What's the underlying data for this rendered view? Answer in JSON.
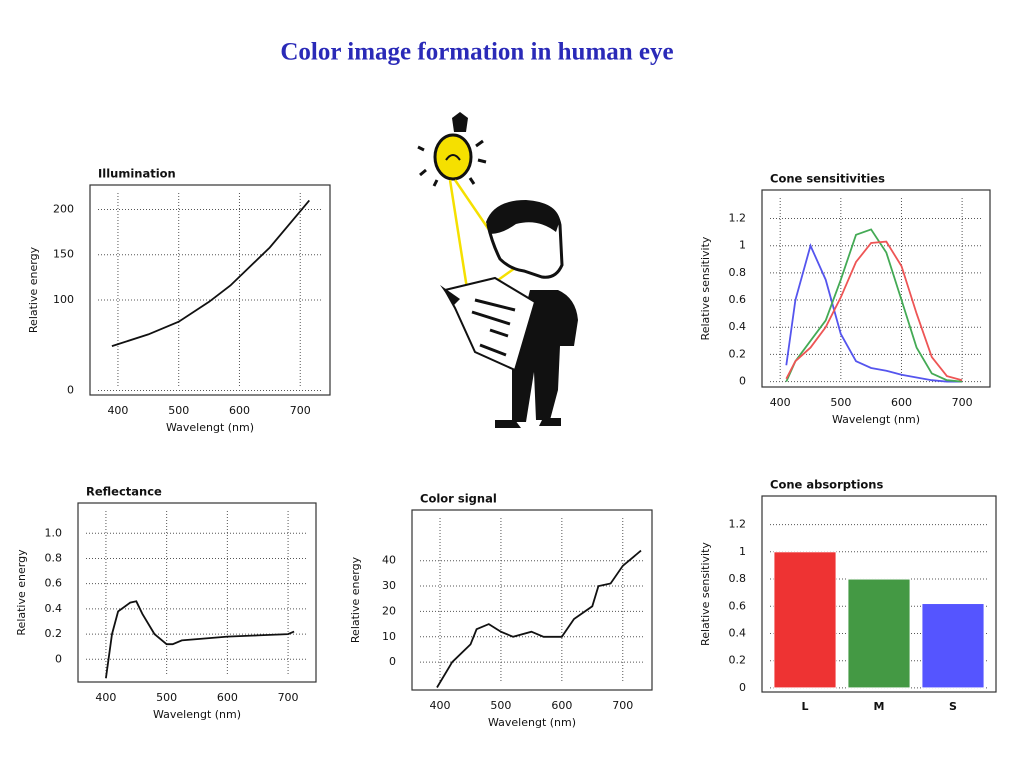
{
  "title": "Color image formation in human eye",
  "chart_data": [
    {
      "type": "line",
      "title": "Illumination",
      "xlabel": "Wavelengt (nm)",
      "ylabel": "Relative energy",
      "x": [
        390,
        450,
        500,
        550,
        585,
        650,
        700,
        715
      ],
      "values": [
        49,
        62,
        76,
        98,
        116,
        158,
        198,
        210
      ],
      "color": "#111111",
      "xlim": [
        354,
        749
      ],
      "xticks": [
        400,
        500,
        600,
        700
      ],
      "ylim": [
        -5,
        227
      ],
      "yticks": [
        0,
        100,
        150,
        200
      ],
      "grid": true
    },
    {
      "type": "line",
      "title": "Cone sensitivities",
      "xlabel": "Wavelengt (nm)",
      "ylabel": "Relative sensitivity",
      "x": [
        410,
        425,
        450,
        475,
        500,
        525,
        550,
        575,
        600,
        625,
        650,
        675,
        700
      ],
      "series": [
        {
          "color": "#5555ee",
          "values": [
            0.12,
            0.6,
            1.0,
            0.75,
            0.35,
            0.15,
            0.1,
            0.08,
            0.05,
            0.03,
            0.01,
            0,
            0
          ]
        },
        {
          "color": "#44aa55",
          "values": [
            0.0,
            0.15,
            0.3,
            0.45,
            0.75,
            1.08,
            1.12,
            0.95,
            0.6,
            0.25,
            0.06,
            0.01,
            0
          ]
        },
        {
          "color": "#ee5555",
          "values": [
            0.02,
            0.15,
            0.25,
            0.4,
            0.62,
            0.88,
            1.02,
            1.03,
            0.85,
            0.5,
            0.18,
            0.04,
            0.01
          ]
        }
      ],
      "xlim": [
        370,
        746
      ],
      "xticks": [
        400,
        500,
        600,
        700
      ],
      "ylim": [
        -0.04,
        1.41
      ],
      "yticks": [
        0,
        0.2,
        0.4,
        0.6,
        0.8,
        1,
        1.2
      ],
      "grid": true
    },
    {
      "type": "line",
      "title": "Reflectance",
      "xlabel": "Wavelengt (nm)",
      "ylabel": "Relative energy",
      "x": [
        400,
        410,
        420,
        440,
        450,
        460,
        480,
        500,
        510,
        525,
        550,
        600,
        650,
        700,
        710
      ],
      "values": [
        -0.15,
        0.2,
        0.38,
        0.45,
        0.46,
        0.36,
        0.2,
        0.12,
        0.12,
        0.15,
        0.16,
        0.18,
        0.19,
        0.2,
        0.22
      ],
      "color": "#111111",
      "xlim": [
        354,
        746
      ],
      "xticks": [
        400,
        500,
        600,
        700
      ],
      "ylim": [
        -0.18,
        1.24
      ],
      "yticks": [
        0,
        0.2,
        0.4,
        0.6,
        0.8,
        {
          "value": 1,
          "label": "1.0"
        }
      ],
      "grid": true
    },
    {
      "type": "line",
      "title": "Color signal",
      "xlabel": "Wavelengt (nm)",
      "ylabel": "Relative energy",
      "x": [
        395,
        420,
        450,
        460,
        480,
        500,
        520,
        550,
        570,
        600,
        620,
        650,
        660,
        680,
        700,
        730
      ],
      "values": [
        -10,
        0,
        7,
        13,
        15,
        12,
        10,
        12,
        10,
        10,
        17,
        22,
        30,
        31,
        38,
        44
      ],
      "color": "#111111",
      "xlim": [
        354,
        748
      ],
      "xticks": [
        400,
        500,
        600,
        700
      ],
      "ylim": [
        -11,
        60
      ],
      "yticks": [
        0,
        10,
        20,
        30,
        40
      ],
      "grid": true
    },
    {
      "type": "bar",
      "title": "Cone absorptions",
      "ylabel": "Relative sensitivity",
      "categories": [
        "L",
        "M",
        "S"
      ],
      "values": [
        1,
        0.8,
        0.62
      ],
      "colors": [
        "#ee3333",
        "#449944",
        "#5555ff"
      ],
      "ylim": [
        -0.03,
        1.41
      ],
      "yticks": [
        0,
        0.2,
        0.4,
        0.6,
        0.8,
        1,
        1.2
      ],
      "grid": true
    }
  ]
}
